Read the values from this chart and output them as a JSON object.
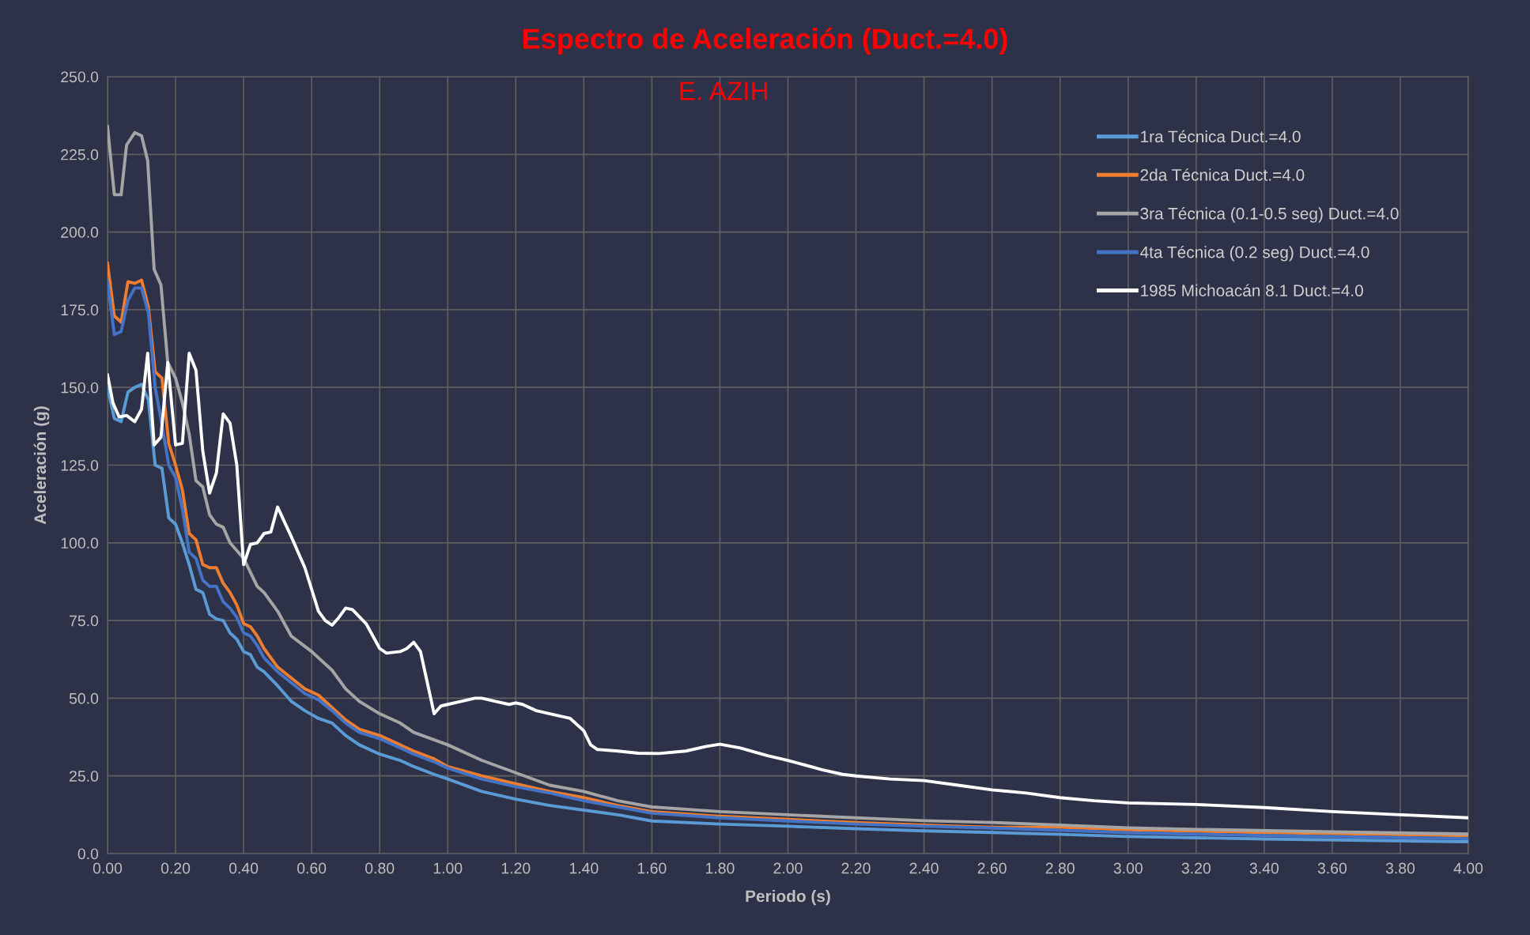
{
  "chart_data": {
    "type": "line",
    "title": "Espectro de Aceleración (Duct.=4.0)",
    "subtitle": "E. AZIH",
    "xlabel": "Periodo (s)",
    "ylabel": "Aceleración (g)",
    "xlim": [
      0,
      4
    ],
    "ylim": [
      0,
      250
    ],
    "xticks": [
      {
        "value": 0,
        "label": "0.00"
      },
      {
        "value": 0.2,
        "label": "0.20"
      },
      {
        "value": 0.4,
        "label": "0.40"
      },
      {
        "value": 0.6,
        "label": "0.60"
      },
      {
        "value": 0.8,
        "label": "0.80"
      },
      {
        "value": 1.0,
        "label": "1.00"
      },
      {
        "value": 1.2,
        "label": "1.20"
      },
      {
        "value": 1.4,
        "label": "1.40"
      },
      {
        "value": 1.6,
        "label": "1.60"
      },
      {
        "value": 1.8,
        "label": "1.80"
      },
      {
        "value": 2.0,
        "label": "2.00"
      },
      {
        "value": 2.2,
        "label": "2.20"
      },
      {
        "value": 2.4,
        "label": "2.40"
      },
      {
        "value": 2.6,
        "label": "2.60"
      },
      {
        "value": 2.8,
        "label": "2.80"
      },
      {
        "value": 3.0,
        "label": "3.00"
      },
      {
        "value": 3.2,
        "label": "3.20"
      },
      {
        "value": 3.4,
        "label": "3.40"
      },
      {
        "value": 3.6,
        "label": "3.60"
      },
      {
        "value": 3.8,
        "label": "3.80"
      },
      {
        "value": 4.0,
        "label": "4.00"
      }
    ],
    "yticks": [
      {
        "value": 0,
        "label": "0.0"
      },
      {
        "value": 25,
        "label": "25.0"
      },
      {
        "value": 50,
        "label": "50.0"
      },
      {
        "value": 75,
        "label": "75.0"
      },
      {
        "value": 100,
        "label": "100.0"
      },
      {
        "value": 125,
        "label": "125.0"
      },
      {
        "value": 150,
        "label": "150.0"
      },
      {
        "value": 175,
        "label": "175.0"
      },
      {
        "value": 200,
        "label": "200.0"
      },
      {
        "value": 225,
        "label": "225.0"
      },
      {
        "value": 250,
        "label": "250.0"
      }
    ],
    "grid": true,
    "legend": "top right",
    "marker": "none",
    "line_style": "solid",
    "series": [
      {
        "name": "1ra Técnica Duct.=4.0",
        "color": "#5b9bd5",
        "x": [
          0,
          0.02,
          0.04,
          0.06,
          0.08,
          0.1,
          0.12,
          0.14,
          0.16,
          0.18,
          0.2,
          0.22,
          0.24,
          0.26,
          0.28,
          0.3,
          0.32,
          0.34,
          0.36,
          0.38,
          0.4,
          0.42,
          0.44,
          0.46,
          0.5,
          0.54,
          0.58,
          0.62,
          0.66,
          0.7,
          0.74,
          0.8,
          0.86,
          0.9,
          0.96,
          1.0,
          1.1,
          1.2,
          1.3,
          1.4,
          1.5,
          1.6,
          1.8,
          2.0,
          2.2,
          2.4,
          2.6,
          2.8,
          3.0,
          3.4,
          4.0
        ],
        "values": [
          150,
          140,
          139,
          148.5,
          150,
          151,
          146,
          125,
          124,
          108,
          106,
          100,
          93,
          85,
          84,
          77,
          75.5,
          75,
          71,
          69,
          65,
          64,
          60,
          58.5,
          54,
          49,
          46,
          43.5,
          42,
          38,
          35,
          32,
          30,
          28,
          25.5,
          24,
          20,
          17.5,
          15.5,
          14,
          12.5,
          10.5,
          9.5,
          8.8,
          8,
          7.3,
          6.8,
          6.2,
          5.5,
          4.7,
          3.8
        ]
      },
      {
        "name": "2da Técnica Duct.=4.0",
        "color": "#ed7d31",
        "x": [
          0,
          0.02,
          0.04,
          0.06,
          0.08,
          0.1,
          0.12,
          0.14,
          0.16,
          0.18,
          0.2,
          0.22,
          0.24,
          0.26,
          0.28,
          0.3,
          0.32,
          0.34,
          0.36,
          0.38,
          0.4,
          0.42,
          0.44,
          0.46,
          0.5,
          0.54,
          0.58,
          0.62,
          0.66,
          0.7,
          0.74,
          0.8,
          0.86,
          0.9,
          0.96,
          1.0,
          1.1,
          1.2,
          1.3,
          1.4,
          1.5,
          1.6,
          1.8,
          2.0,
          2.2,
          2.4,
          2.6,
          2.8,
          3.0,
          3.4,
          4.0
        ],
        "values": [
          190,
          173,
          171,
          184,
          183.5,
          184.5,
          176,
          155,
          153,
          132,
          125,
          117,
          103,
          101,
          93,
          92,
          92,
          87,
          84,
          80,
          74,
          73,
          70,
          66,
          60,
          56.5,
          53,
          51,
          47,
          43,
          40,
          38,
          35,
          33,
          30.5,
          28,
          25,
          22.5,
          20,
          18,
          15.5,
          13.5,
          12,
          11,
          10,
          9.2,
          8.5,
          8.5,
          7.7,
          6.8,
          5.8
        ]
      },
      {
        "name": "3ra Técnica (0.1-0.5 seg) Duct.=4.0",
        "color": "#a5a5a5",
        "x": [
          0,
          0.02,
          0.04,
          0.056,
          0.08,
          0.1,
          0.118,
          0.137,
          0.157,
          0.177,
          0.2,
          0.22,
          0.24,
          0.26,
          0.28,
          0.3,
          0.32,
          0.34,
          0.36,
          0.4,
          0.44,
          0.46,
          0.5,
          0.54,
          0.6,
          0.66,
          0.7,
          0.74,
          0.8,
          0.86,
          0.9,
          1.0,
          1.1,
          1.2,
          1.3,
          1.4,
          1.5,
          1.6,
          1.8,
          2.0,
          2.2,
          2.4,
          2.6,
          2.8,
          3.0,
          3.2,
          3.6,
          4.0
        ],
        "values": [
          234,
          212,
          212,
          228,
          232,
          231,
          223,
          188,
          183,
          158,
          153,
          145,
          135,
          120,
          118,
          109,
          106,
          105,
          100,
          95,
          86,
          84,
          78,
          70,
          65,
          59,
          53,
          49,
          45,
          42,
          39,
          35,
          30,
          26,
          22,
          20,
          17,
          15,
          13.5,
          12.5,
          11.5,
          10.6,
          10,
          9.2,
          8.3,
          7.8,
          7,
          6.3
        ]
      },
      {
        "name": "4ta Técnica (0.2 seg) Duct.=4.0",
        "color": "#4472c4",
        "x": [
          0,
          0.02,
          0.04,
          0.06,
          0.08,
          0.1,
          0.12,
          0.14,
          0.16,
          0.18,
          0.2,
          0.22,
          0.24,
          0.26,
          0.28,
          0.3,
          0.32,
          0.34,
          0.36,
          0.38,
          0.4,
          0.42,
          0.44,
          0.46,
          0.5,
          0.54,
          0.58,
          0.62,
          0.66,
          0.7,
          0.74,
          0.8,
          0.86,
          0.9,
          0.96,
          1.0,
          1.1,
          1.2,
          1.3,
          1.4,
          1.5,
          1.6,
          1.8,
          2.0,
          2.2,
          2.4,
          2.6,
          2.8,
          3.0,
          3.4,
          4.0
        ],
        "values": [
          184,
          167,
          168,
          178,
          182,
          182,
          174,
          150,
          138,
          125,
          121,
          111,
          97,
          95,
          88,
          86,
          86,
          81,
          79,
          76,
          71,
          70,
          67,
          63,
          58.5,
          55,
          51.5,
          49.5,
          46,
          42,
          39,
          37,
          34,
          32,
          29.5,
          27.5,
          24,
          21.5,
          19.5,
          17,
          15,
          13,
          11.5,
          10.5,
          9.5,
          8.8,
          8.2,
          7.5,
          6.7,
          5.8,
          4.8
        ]
      },
      {
        "name": "1985 Michoacán 8.1 Duct.=4.0",
        "color": "#ffffff",
        "x": [
          0,
          0.016,
          0.034,
          0.056,
          0.08,
          0.1,
          0.118,
          0.137,
          0.157,
          0.177,
          0.2,
          0.22,
          0.24,
          0.26,
          0.28,
          0.3,
          0.32,
          0.34,
          0.36,
          0.38,
          0.4,
          0.42,
          0.44,
          0.46,
          0.48,
          0.5,
          0.54,
          0.58,
          0.6,
          0.62,
          0.64,
          0.66,
          0.68,
          0.7,
          0.72,
          0.76,
          0.78,
          0.8,
          0.82,
          0.86,
          0.88,
          0.9,
          0.92,
          0.94,
          0.96,
          0.98,
          1.0,
          1.04,
          1.08,
          1.1,
          1.14,
          1.18,
          1.2,
          1.22,
          1.26,
          1.3,
          1.36,
          1.4,
          1.42,
          1.44,
          1.5,
          1.56,
          1.62,
          1.7,
          1.76,
          1.8,
          1.86,
          1.94,
          2.0,
          2.1,
          2.16,
          2.2,
          2.3,
          2.4,
          2.5,
          2.6,
          2.7,
          2.8,
          2.9,
          3.0,
          3.2,
          3.4,
          3.6,
          3.8,
          4.0
        ],
        "values": [
          154,
          145,
          140.5,
          141,
          139,
          143,
          161,
          131.5,
          134,
          158,
          131.5,
          132,
          161,
          155.5,
          129.5,
          116,
          122.5,
          141.5,
          138.5,
          125,
          93,
          99.5,
          100,
          103,
          103.5,
          111.5,
          102,
          92,
          85,
          78,
          75,
          73.5,
          76,
          79,
          78.5,
          74,
          70,
          66,
          64.5,
          65,
          66,
          68,
          65,
          55,
          45,
          47.5,
          48,
          49,
          50,
          50,
          49,
          48,
          48.5,
          48,
          46,
          45,
          43.5,
          39.5,
          35,
          33.5,
          33,
          32.3,
          32.2,
          33,
          34.5,
          35.2,
          34,
          31.5,
          30,
          27,
          25.5,
          25,
          24,
          23.5,
          22,
          20.5,
          19.5,
          18,
          17,
          16.3,
          15.8,
          14.8,
          13.5,
          12.5,
          11.5
        ]
      }
    ]
  }
}
